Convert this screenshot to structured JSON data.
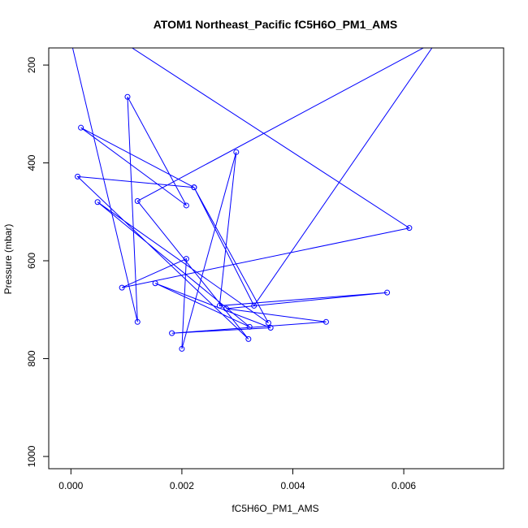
{
  "chart_data": {
    "type": "line",
    "title": "ATOM1 Northeast_Pacific fC5H6O_PM1_AMS",
    "xlabel": "fC5H6O_PM1_AMS",
    "ylabel": "Pressure (mbar)",
    "xlim": [
      -0.0004,
      0.0078
    ],
    "ylim": [
      1025,
      165
    ],
    "y_reversed": true,
    "xticks": [
      0.0,
      0.002,
      0.004,
      0.006
    ],
    "xtick_labels": [
      "0.000",
      "0.002",
      "0.004",
      "0.006"
    ],
    "yticks": [
      200,
      400,
      600,
      800,
      1000
    ],
    "ytick_labels": [
      "200",
      "400",
      "600",
      "800",
      "1000"
    ],
    "grid": false,
    "color": "#0000ff",
    "series": [
      {
        "points": [
          {
            "x": 0.0,
            "y": 150,
            "marker": false
          },
          {
            "x": 0.0012,
            "y": 725
          },
          {
            "x": 0.00102,
            "y": 265
          },
          {
            "x": 0.00208,
            "y": 487
          },
          {
            "x": 0.00018,
            "y": 328
          },
          {
            "x": 0.00222,
            "y": 450
          },
          {
            "x": 0.00012,
            "y": 428
          },
          {
            "x": 0.0032,
            "y": 760
          },
          {
            "x": 0.0012,
            "y": 478
          },
          {
            "x": 0.0066,
            "y": 150,
            "marker": false
          },
          {
            "x": 0.0009,
            "y": 150,
            "marker": false
          },
          {
            "x": 0.0061,
            "y": 533
          },
          {
            "x": 0.00092,
            "y": 655
          },
          {
            "x": 0.00208,
            "y": 596
          },
          {
            "x": 0.002,
            "y": 780
          },
          {
            "x": 0.00298,
            "y": 378
          },
          {
            "x": 0.00268,
            "y": 692
          },
          {
            "x": 0.0057,
            "y": 665
          },
          {
            "x": 0.0028,
            "y": 698
          },
          {
            "x": 0.0046,
            "y": 725
          },
          {
            "x": 0.00182,
            "y": 748
          },
          {
            "x": 0.0036,
            "y": 737
          },
          {
            "x": 0.00152,
            "y": 646
          },
          {
            "x": 0.00322,
            "y": 735
          },
          {
            "x": 0.00048,
            "y": 480
          },
          {
            "x": 0.00356,
            "y": 727
          },
          {
            "x": 0.00222,
            "y": 450
          },
          {
            "x": 0.0033,
            "y": 692
          },
          {
            "x": 0.0066,
            "y": 150,
            "marker": false
          }
        ]
      }
    ]
  }
}
